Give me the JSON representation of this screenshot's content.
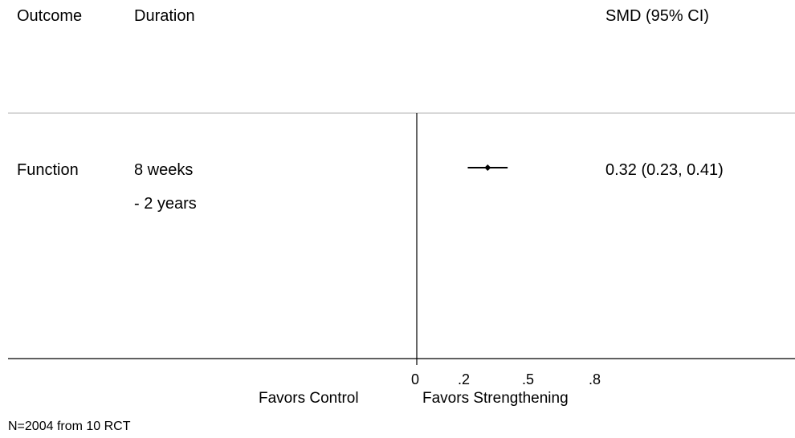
{
  "headers": {
    "outcome": "Outcome",
    "duration": "Duration",
    "estimate": "SMD (95% CI)"
  },
  "rows": [
    {
      "outcome": "Function",
      "duration_line1": "8 weeks",
      "duration_line2": "- 2 years",
      "estimate_text": "0.32 (0.23, 0.41)"
    }
  ],
  "axis": {
    "ticks": [
      "0",
      ".2",
      ".5",
      ".8"
    ],
    "favors_left": "Favors Control",
    "favors_right": "Favors Strengthening"
  },
  "footnote": "N=2004 from 10 RCT",
  "chart_data": {
    "type": "forest",
    "x_reference": 0,
    "xlim": [
      0,
      0.8
    ],
    "tick_values": [
      0,
      0.2,
      0.5,
      0.8
    ],
    "points": [
      {
        "estimate": 0.32,
        "ci_low": 0.23,
        "ci_high": 0.41
      }
    ]
  }
}
